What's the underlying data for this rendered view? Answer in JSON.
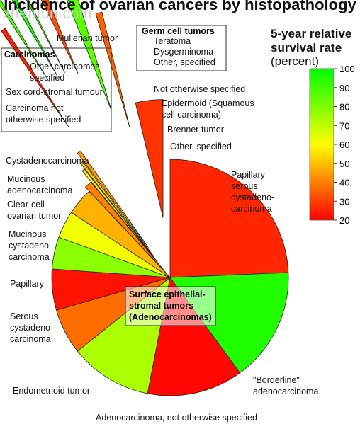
{
  "watermark": "zhentun.com",
  "title": "Incidence of ovarian cancers by histopathology",
  "legend": {
    "title_line1": "5-year relative",
    "title_line2": "survival rate",
    "unit": "(percent)",
    "ticks": [
      "100",
      "90",
      "80",
      "70",
      "60",
      "50",
      "40",
      "30",
      "20"
    ],
    "colors": {
      "low": "#ff0000",
      "mid": "#ffff00",
      "high": "#00ff00"
    }
  },
  "chart_data": {
    "type": "pie",
    "title": "Incidence of ovarian cancers by histopathology",
    "color_scale": {
      "label": "5-year relative survival rate (percent)",
      "min": 20,
      "max": 100
    },
    "groups": [
      "Surface epithelial-stromal tumors (Adenocarcinomas)",
      "Germ cell tumors",
      "Carcinomas"
    ],
    "slices": [
      {
        "label": "Papillary serous cystadenocarcinoma",
        "group": "Surface epithelial-stromal tumors (Adenocarcinomas)",
        "percent": 19.5,
        "survival": 26
      },
      {
        "label": "\"Borderline\" adenocarcinoma",
        "group": "Surface epithelial-stromal tumors (Adenocarcinomas)",
        "percent": 12.5,
        "survival": 95
      },
      {
        "label": "Adenocarcinoma, not otherwise specified",
        "group": "Surface epithelial-stromal tumors (Adenocarcinomas)",
        "percent": 10.5,
        "survival": 21
      },
      {
        "label": "Endometrioid tumor",
        "group": "Surface epithelial-stromal tumors (Adenocarcinomas)",
        "percent": 9.0,
        "survival": 73
      },
      {
        "label": "Serous cystadenocarcinoma",
        "group": "Surface epithelial-stromal tumors (Adenocarcinomas)",
        "percent": 5.0,
        "survival": 37
      },
      {
        "label": "Papillary",
        "group": "Surface epithelial-stromal tumors (Adenocarcinomas)",
        "percent": 4.5,
        "survival": 23
      },
      {
        "label": "Mucinous cystadenocarcinoma",
        "group": "Surface epithelial-stromal tumors (Adenocarcinomas)",
        "percent": 3.5,
        "survival": 78
      },
      {
        "label": "Clear-cell ovarian tumor",
        "group": "Surface epithelial-stromal tumors (Adenocarcinomas)",
        "percent": 3.0,
        "survival": 62
      },
      {
        "label": "Mucinous adenocarcinoma",
        "group": "Surface epithelial-stromal tumors (Adenocarcinomas)",
        "percent": 3.0,
        "survival": 48
      },
      {
        "label": "Cystadenocarcinoma",
        "group": "Surface epithelial-stromal tumors (Adenocarcinomas)",
        "percent": 0.8,
        "survival": 40
      },
      {
        "label": "Other, specified",
        "group": "Surface epithelial-stromal tumors (Adenocarcinomas)",
        "percent": 0.3,
        "survival": 58
      },
      {
        "label": "Brenner tumor",
        "group": "Surface epithelial-stromal tumors (Adenocarcinomas)",
        "percent": 0.3,
        "survival": 52
      },
      {
        "label": "Epidermoid (Squamous cell carcinoma)",
        "group": "Surface epithelial-stromal tumors (Adenocarcinomas)",
        "percent": 0.4,
        "survival": 45
      },
      {
        "label": "Not otherwise specified",
        "group": "Other",
        "percent": 0.5,
        "survival": 25
      },
      {
        "label": "Other, specified",
        "group": "Germ cell tumors",
        "percent": 0.5,
        "survival": 88
      },
      {
        "label": "Dysgerminoma",
        "group": "Germ cell tumors",
        "percent": 0.6,
        "survival": 97
      },
      {
        "label": "Teratoma",
        "group": "Germ cell tumors",
        "percent": 0.3,
        "survival": 90
      },
      {
        "label": "Mullerian tumor",
        "group": "Other",
        "percent": 1.0,
        "survival": 32
      },
      {
        "label": "Sex cord-stromal tumour",
        "group": "Other",
        "percent": 1.2,
        "survival": 86
      },
      {
        "label": "Other carcinomas, specified",
        "group": "Carcinomas",
        "percent": 0.7,
        "survival": 35
      },
      {
        "label": "Carcinoma not otherwise specified",
        "group": "Carcinomas",
        "percent": 3.0,
        "survival": 28
      }
    ]
  }
}
